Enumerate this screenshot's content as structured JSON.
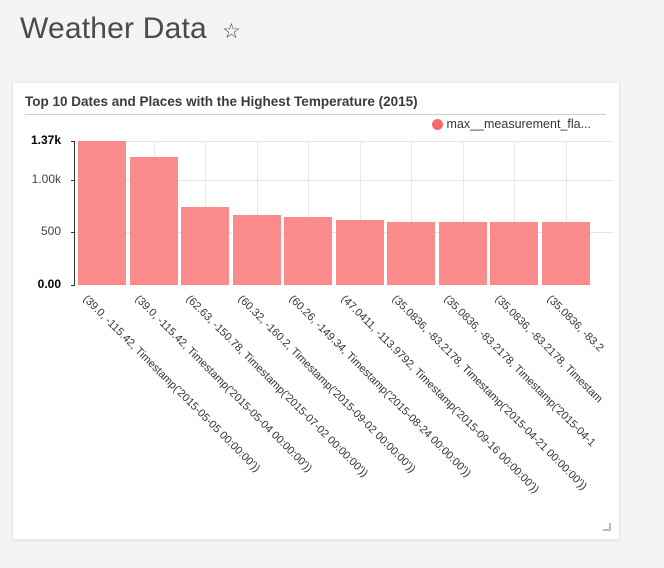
{
  "header": {
    "title": "Weather Data",
    "star_icon": "☆"
  },
  "card": {
    "title": "Top 10 Dates and Places with the Highest Temperature (2015)"
  },
  "legend": {
    "label": "max__measurement_fla...",
    "dot_color": "#f8696e"
  },
  "chart_data": {
    "type": "bar",
    "title": "Top 10 Dates and Places with the Highest Temperature (2015)",
    "series_name": "max__measurement_fla...",
    "bar_color": "#fb8a8b",
    "categories": [
      "(39.0, -115.42, Timestamp('2015-05-05 00:00:00'))",
      "(39.0, -115.42, Timestamp('2015-05-04 00:00:00'))",
      "(62.63, -150.78, Timestamp('2015-07-02 00:00:00'))",
      "(60.32, -160.2, Timestamp('2015-09-02 00:00:00'))",
      "(60.26, -149.34, Timestamp('2015-08-24 00:00:00'))",
      "(47.0411, -113.9792, Timestamp('2015-09-16 00:00:00'))",
      "(35.0836, -83.2178, Timestamp('2015-04-21 00:00:00'))",
      "(35.0836, -83.2178, Timestamp('2015-04-1",
      "(35.0836, -83.2178, Timestam",
      "(35.0836, -83.2"
    ],
    "values": [
      1370,
      1215,
      740,
      665,
      645,
      615,
      600,
      598,
      596,
      595
    ],
    "ylim": [
      0,
      1370
    ],
    "y_ticks": [
      {
        "label": "0.00",
        "value": 0,
        "bold": true
      },
      {
        "label": "500",
        "value": 500,
        "bold": false
      },
      {
        "label": "1.00k",
        "value": 1000,
        "bold": false
      },
      {
        "label": "1.37k",
        "value": 1370,
        "bold": true
      }
    ],
    "grid": true,
    "legend_position": "top-right",
    "xlabel": "",
    "ylabel": ""
  }
}
